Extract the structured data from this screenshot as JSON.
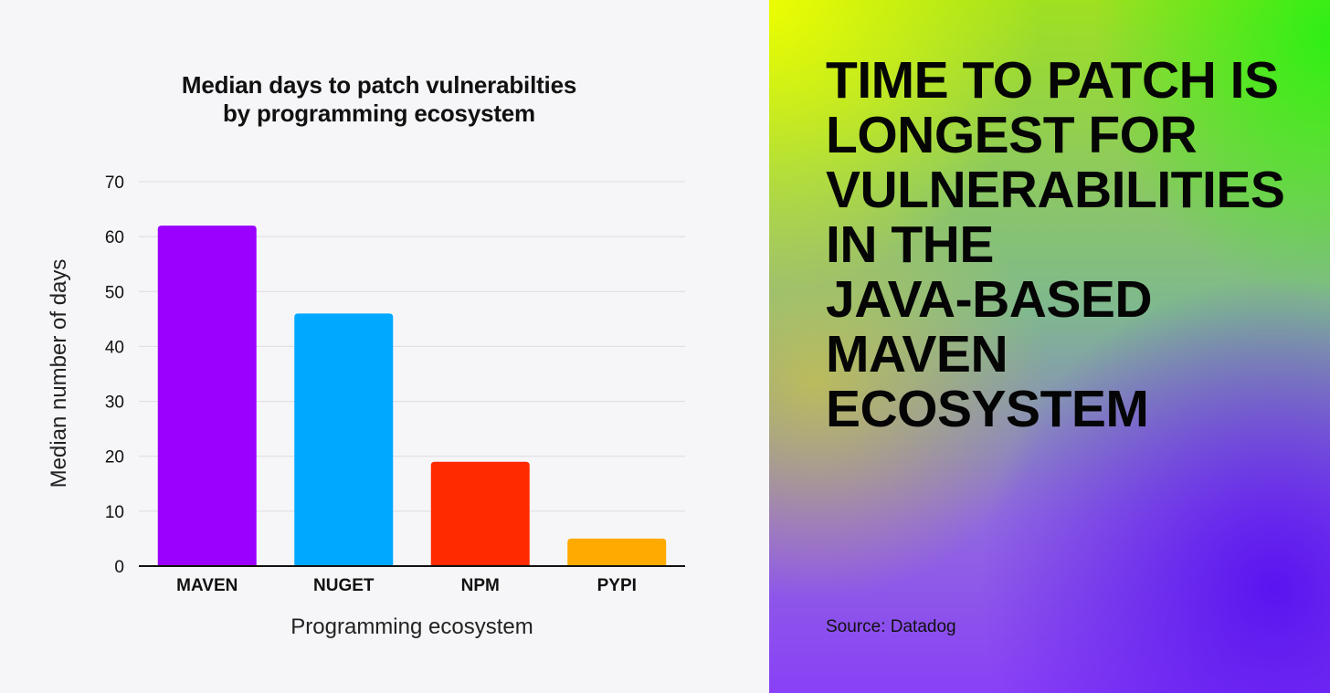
{
  "chart_data": {
    "type": "bar",
    "title": "Median days to patch vulnerabilties by programming ecosystem",
    "title_lines": [
      "Median days to patch vulnerabilties",
      "by programming ecosystem"
    ],
    "xlabel": "Programming ecosystem",
    "ylabel": "Median number of days",
    "categories": [
      "MAVEN",
      "NUGET",
      "NPM",
      "PYPI"
    ],
    "values": [
      62,
      46,
      19,
      5
    ],
    "colors": [
      "#9b00ff",
      "#00a8ff",
      "#ff2a00",
      "#ffaa00"
    ],
    "ylim": [
      0,
      70
    ],
    "yticks": [
      0,
      10,
      20,
      30,
      40,
      50,
      60,
      70
    ],
    "grid": true
  },
  "side": {
    "headline": "TIME TO PATCH IS LONGEST FOR VULNERABILITIES IN THE JAVA-BASED MAVEN ECOSYSTEM",
    "headline_lines": [
      "TIME TO PATCH IS",
      "LONGEST FOR",
      "VULNERABILITIES",
      "IN THE",
      "JAVA-BASED",
      "MAVEN",
      "ECOSYSTEM"
    ],
    "source": "Source: Datadog"
  }
}
